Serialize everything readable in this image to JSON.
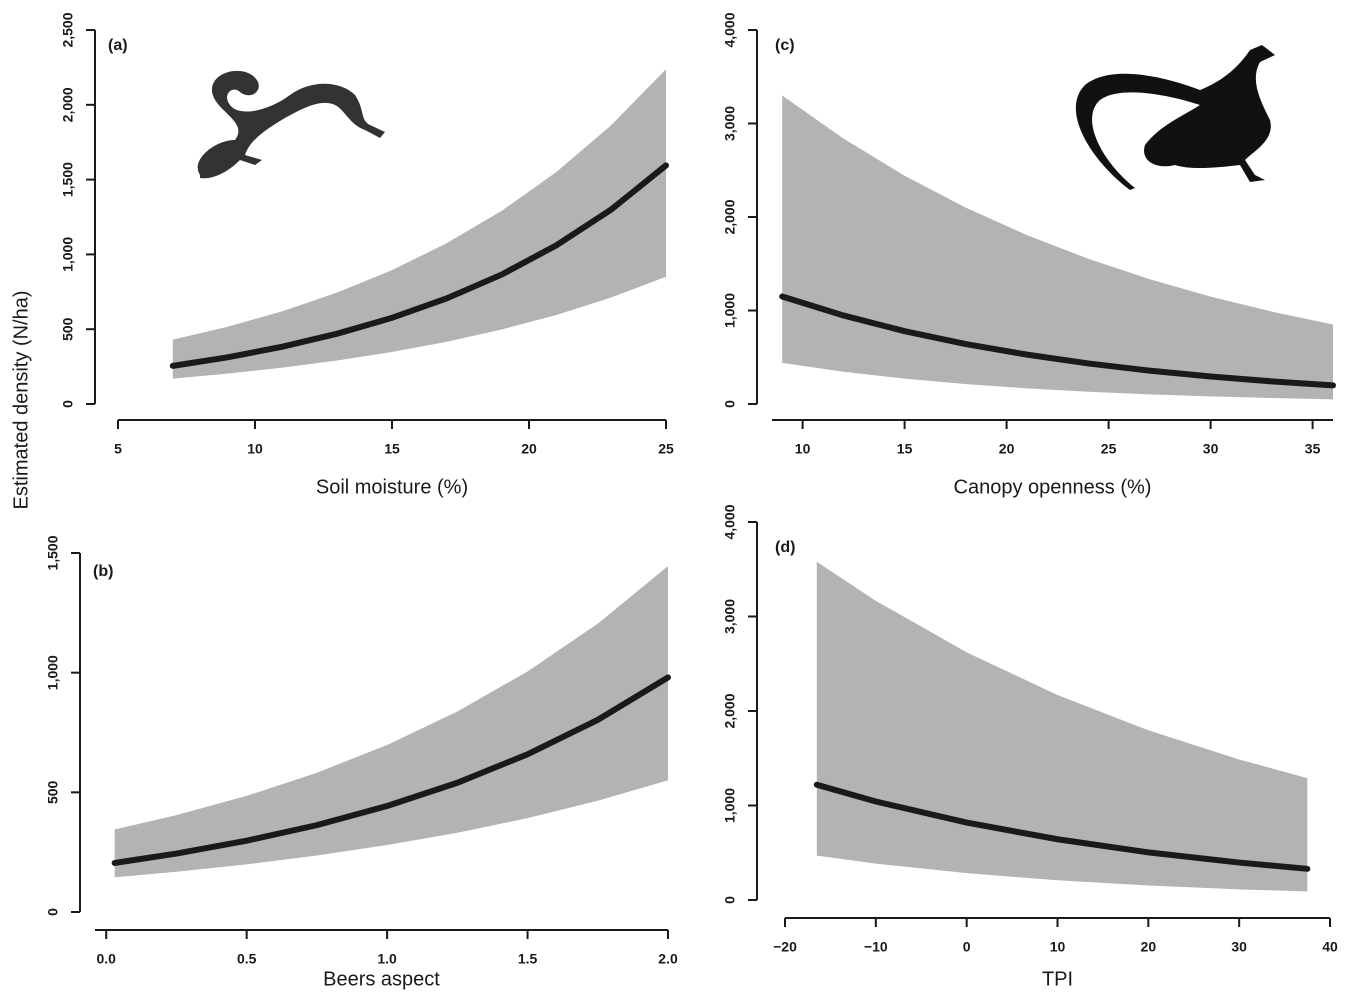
{
  "ylabel": "Estimated density (N/ha)",
  "chart_data": [
    {
      "type": "line",
      "label": "(a)",
      "xlabel": "Soil moisture (%)",
      "xlim": [
        5,
        25
      ],
      "xticks": [
        5,
        10,
        15,
        20,
        25
      ],
      "ylim": [
        0,
        2500
      ],
      "yticks": [
        0,
        500,
        {
          "value": 1000,
          "label": "1,000"
        },
        {
          "value": 1500,
          "label": "1,500"
        },
        {
          "value": 2000,
          "label": "2,000"
        },
        {
          "value": 2500,
          "label": "2,500"
        }
      ],
      "line_color": "#1a1a1a",
      "band_color": "#b3b3b3",
      "x": [
        7,
        9,
        11,
        13,
        15,
        17,
        19,
        21,
        23,
        25
      ],
      "values": [
        255,
        312,
        383,
        470,
        576,
        706,
        865,
        1061,
        1300,
        1595
      ],
      "upper": [
        430,
        516,
        620,
        745,
        895,
        1075,
        1291,
        1551,
        1863,
        2238
      ],
      "lower": [
        170,
        203,
        243,
        291,
        348,
        416,
        498,
        595,
        712,
        851
      ]
    },
    {
      "type": "line",
      "label": "(b)",
      "xlabel": "Beers aspect",
      "xlim": [
        -0.04,
        2.0
      ],
      "xticks": [
        {
          "value": 0,
          "label": "0.0"
        },
        0.5,
        {
          "value": 1,
          "label": "1.0"
        },
        1.5,
        {
          "value": 2,
          "label": "2.0"
        }
      ],
      "ylim": [
        0,
        1500
      ],
      "yticks": [
        0,
        500,
        {
          "value": 1000,
          "label": "1,000"
        },
        {
          "value": 1500,
          "label": "1,500"
        }
      ],
      "line_color": "#1a1a1a",
      "band_color": "#b3b3b3",
      "x": [
        0.03,
        0.25,
        0.5,
        0.75,
        1.0,
        1.25,
        1.5,
        1.75,
        2.0
      ],
      "values": [
        205,
        244,
        298,
        363,
        443,
        540,
        659,
        803,
        980
      ],
      "upper": [
        345,
        405,
        485,
        582,
        698,
        838,
        1005,
        1205,
        1445
      ],
      "lower": [
        145,
        168,
        199,
        236,
        280,
        331,
        392,
        465,
        550
      ]
    },
    {
      "type": "line",
      "label": "(c)",
      "xlabel": "Canopy openness (%)",
      "xlim": [
        8.5,
        36
      ],
      "xticks": [
        10,
        15,
        20,
        25,
        30,
        35
      ],
      "ylim": [
        0,
        4000
      ],
      "yticks": [
        0,
        {
          "value": 1000,
          "label": "1,000"
        },
        {
          "value": 2000,
          "label": "2,000"
        },
        {
          "value": 3000,
          "label": "3,000"
        },
        {
          "value": 4000,
          "label": "4,000"
        }
      ],
      "line_color": "#1a1a1a",
      "band_color": "#b3b3b3",
      "x": [
        9,
        12,
        15,
        18,
        21,
        24,
        27,
        30,
        33,
        36
      ],
      "values": [
        1150,
        947,
        779,
        641,
        528,
        434,
        357,
        294,
        242,
        199
      ],
      "upper": [
        3300,
        2839,
        2441,
        2100,
        1806,
        1553,
        1336,
        1149,
        988,
        850
      ],
      "lower": [
        440,
        345,
        271,
        213,
        167,
        131,
        103,
        81,
        64,
        50
      ]
    },
    {
      "type": "line",
      "label": "(d)",
      "xlabel": "TPI",
      "xlim": [
        -20,
        40
      ],
      "xticks": [
        {
          "value": -20,
          "label": "−20"
        },
        {
          "value": -10,
          "label": "−10"
        },
        0,
        10,
        20,
        30,
        40
      ],
      "ylim": [
        0,
        4000
      ],
      "yticks": [
        0,
        {
          "value": 1000,
          "label": "1,000"
        },
        {
          "value": 2000,
          "label": "2,000"
        },
        {
          "value": 3000,
          "label": "3,000"
        },
        {
          "value": 4000,
          "label": "4,000"
        }
      ],
      "line_color": "#1a1a1a",
      "band_color": "#b3b3b3",
      "x": [
        -16.5,
        -10,
        0,
        10,
        20,
        30,
        37.5
      ],
      "values": [
        1220,
        1042,
        819,
        643,
        504,
        396,
        330
      ],
      "upper": [
        3580,
        3166,
        2621,
        2169,
        1796,
        1487,
        1290
      ],
      "lower": [
        470,
        385,
        284,
        209,
        154,
        113,
        90
      ]
    }
  ]
}
